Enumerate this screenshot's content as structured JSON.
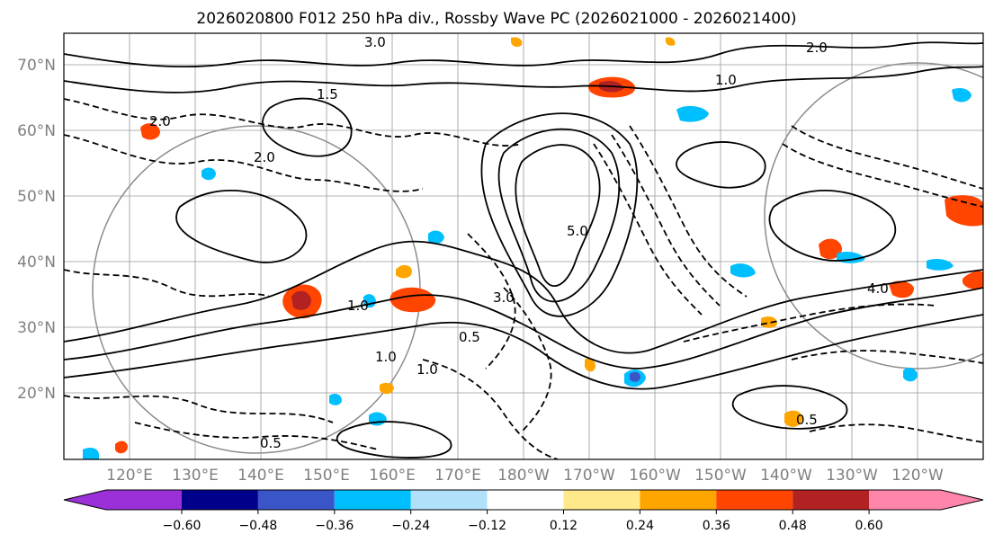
{
  "title": "2026020800 F012 250 hPa div., Rossby Wave PC (2026021000 - 2026021400)",
  "latitude_labels": [
    "70°N",
    "60°N",
    "50°N",
    "40°N",
    "30°N",
    "20°N"
  ],
  "longitude_labels": [
    "120°E",
    "130°E",
    "140°E",
    "150°E",
    "160°E",
    "170°E",
    "180°W",
    "170°W",
    "160°W",
    "150°W",
    "140°W",
    "130°W",
    "120°W"
  ],
  "colorbar": {
    "colors": [
      "#9b30d9",
      "#00008b",
      "#3a55c8",
      "#00bfff",
      "#b0e0fa",
      "#ffffff",
      "#ffe98a",
      "#ffa500",
      "#ff4500",
      "#b22222",
      "#ff85ab"
    ],
    "tick_labels": [
      "−0.60",
      "−0.48",
      "−0.36",
      "−0.24",
      "−0.12",
      "0.12",
      "0.24",
      "0.36",
      "0.48",
      "0.60"
    ]
  },
  "contour_labels": [
    "3.0",
    "2.0",
    "1.0",
    "1.5",
    "5.0",
    "4.0",
    "0.5",
    "1.0",
    "1.0",
    "0.5",
    "3.0",
    "2.0",
    "0.5",
    "1.0",
    "2.0"
  ]
}
